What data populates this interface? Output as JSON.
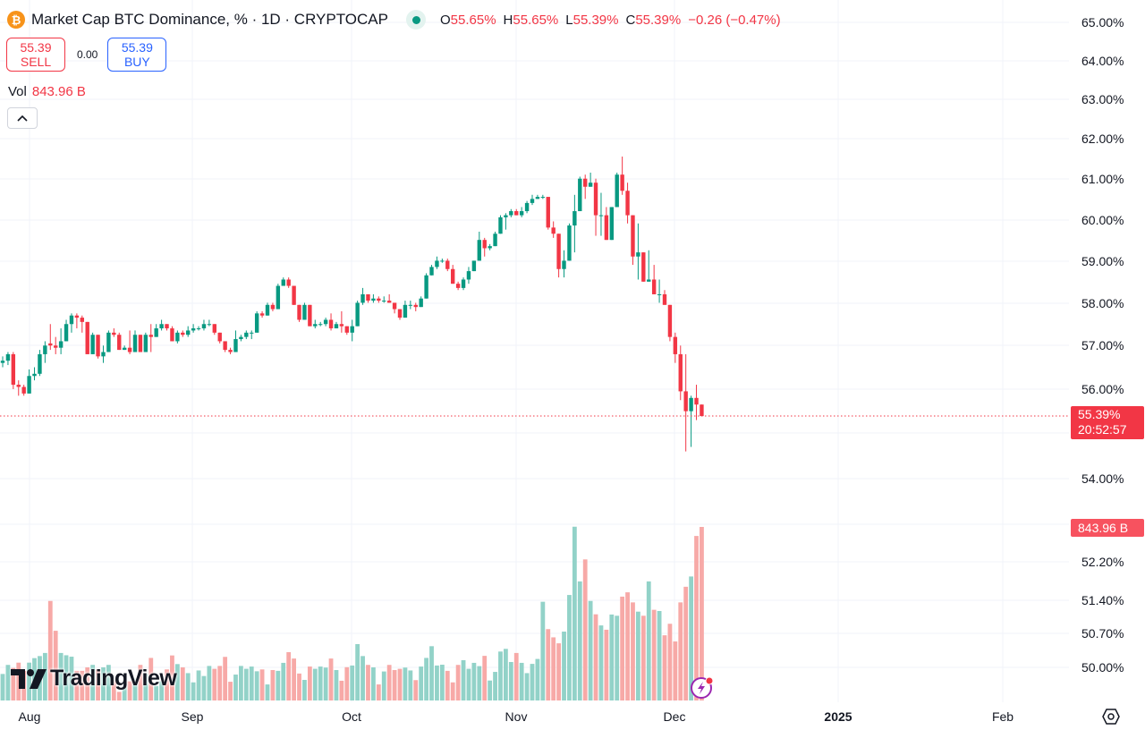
{
  "header": {
    "title": "Market Cap BTC Dominance, % · 1D · CRYPTOCAP",
    "symbol_icon": "bitcoin-icon",
    "market_status": "open",
    "ohlc": {
      "o_label": "O",
      "o": "55.65%",
      "h_label": "H",
      "h": "55.65%",
      "l_label": "L",
      "l": "55.39%",
      "c_label": "C",
      "c": "55.39%",
      "change": "−0.26 (−0.47%)"
    }
  },
  "trade": {
    "sell_price": "55.39",
    "sell_label": "SELL",
    "spread": "0.00",
    "buy_price": "55.39",
    "buy_label": "BUY"
  },
  "volume_legend": {
    "label": "Vol",
    "value": "843.96 B"
  },
  "collapse_icon": "chevron-up-icon",
  "price_axis": {
    "labels": [
      "65.00%",
      "64.00%",
      "63.00%",
      "62.00%",
      "61.00%",
      "60.00%",
      "59.00%",
      "58.00%",
      "57.00%",
      "56.00%",
      "54.00%"
    ],
    "lower_labels": [
      "52.20%",
      "51.40%",
      "50.70%",
      "50.00%"
    ],
    "last_price": "55.39%",
    "countdown": "20:52:57",
    "last_volume": "843.96 B",
    "scale": "log"
  },
  "time_axis": {
    "labels": [
      "Aug",
      "Sep",
      "Oct",
      "Nov",
      "Dec",
      "2025",
      "Feb"
    ]
  },
  "colors": {
    "up": "#089981",
    "down": "#f23645",
    "up_volume": "#92d2c8",
    "down_volume": "#f7a9a7"
  },
  "watermark": "TradingView",
  "chart_data": {
    "type": "candlestick",
    "interval": "1D",
    "start_date": "2024-07-27",
    "end_date": "2024-12-06",
    "ylim": [
      54.0,
      65.0
    ],
    "ohlc": [
      [
        56.6,
        56.75,
        56.5,
        56.65
      ],
      [
        56.65,
        56.85,
        56.55,
        56.8
      ],
      [
        56.8,
        56.85,
        56.0,
        56.1
      ],
      [
        56.1,
        56.2,
        55.85,
        56.05
      ],
      [
        56.05,
        56.1,
        55.85,
        55.9
      ],
      [
        55.9,
        56.45,
        55.9,
        56.3
      ],
      [
        56.3,
        56.5,
        56.2,
        56.35
      ],
      [
        56.35,
        56.9,
        56.3,
        56.8
      ],
      [
        56.8,
        57.1,
        56.6,
        57.0
      ],
      [
        57.05,
        57.5,
        56.9,
        57.0
      ],
      [
        57.0,
        57.2,
        56.8,
        56.95
      ],
      [
        56.95,
        57.4,
        56.8,
        57.1
      ],
      [
        57.1,
        57.6,
        57.1,
        57.5
      ],
      [
        57.5,
        57.75,
        57.3,
        57.7
      ],
      [
        57.7,
        57.75,
        57.4,
        57.65
      ],
      [
        57.65,
        57.7,
        57.3,
        57.55
      ],
      [
        57.55,
        57.55,
        56.8,
        56.8
      ],
      [
        56.8,
        57.3,
        56.8,
        57.25
      ],
      [
        57.25,
        57.25,
        56.7,
        56.75
      ],
      [
        56.75,
        57.0,
        56.6,
        56.85
      ],
      [
        56.85,
        57.35,
        56.85,
        57.3
      ],
      [
        57.3,
        57.4,
        57.2,
        57.25
      ],
      [
        57.25,
        57.3,
        56.9,
        56.9
      ],
      [
        56.9,
        57.0,
        56.9,
        56.95
      ],
      [
        56.95,
        57.35,
        56.8,
        56.85
      ],
      [
        56.85,
        57.35,
        56.85,
        57.25
      ],
      [
        57.25,
        57.25,
        56.85,
        56.85
      ],
      [
        56.85,
        57.3,
        56.85,
        57.25
      ],
      [
        57.25,
        57.5,
        56.85,
        57.2
      ],
      [
        57.2,
        57.5,
        57.2,
        57.4
      ],
      [
        57.4,
        57.6,
        57.35,
        57.5
      ],
      [
        57.5,
        57.5,
        57.35,
        57.4
      ],
      [
        57.4,
        57.45,
        57.1,
        57.1
      ],
      [
        57.1,
        57.35,
        57.05,
        57.3
      ],
      [
        57.3,
        57.35,
        57.2,
        57.25
      ],
      [
        57.25,
        57.45,
        57.2,
        57.35
      ],
      [
        57.35,
        57.5,
        57.3,
        57.4
      ],
      [
        57.4,
        57.45,
        57.35,
        57.4
      ],
      [
        57.4,
        57.6,
        57.35,
        57.5
      ],
      [
        57.5,
        57.6,
        57.45,
        57.5
      ],
      [
        57.5,
        57.5,
        57.25,
        57.3
      ],
      [
        57.3,
        57.3,
        57.05,
        57.1
      ],
      [
        57.1,
        57.1,
        56.85,
        56.9
      ],
      [
        56.9,
        56.95,
        56.8,
        56.85
      ],
      [
        56.85,
        57.35,
        56.85,
        57.15
      ],
      [
        57.15,
        57.25,
        57.1,
        57.2
      ],
      [
        57.2,
        57.35,
        57.15,
        57.3
      ],
      [
        57.3,
        57.35,
        57.15,
        57.3
      ],
      [
        57.3,
        57.8,
        57.3,
        57.75
      ],
      [
        57.75,
        57.8,
        57.65,
        57.7
      ],
      [
        57.7,
        58.0,
        57.7,
        57.95
      ],
      [
        57.95,
        58.0,
        57.8,
        57.85
      ],
      [
        57.85,
        58.45,
        57.85,
        58.4
      ],
      [
        58.4,
        58.6,
        58.4,
        58.55
      ],
      [
        58.55,
        58.6,
        58.35,
        58.4
      ],
      [
        58.4,
        58.4,
        57.95,
        57.95
      ],
      [
        57.95,
        57.95,
        57.55,
        57.6
      ],
      [
        57.6,
        58.0,
        57.6,
        57.95
      ],
      [
        57.95,
        57.95,
        57.45,
        57.45
      ],
      [
        57.45,
        57.6,
        57.4,
        57.5
      ],
      [
        57.5,
        57.55,
        57.45,
        57.5
      ],
      [
        57.5,
        57.65,
        57.45,
        57.6
      ],
      [
        57.6,
        57.75,
        57.35,
        57.4
      ],
      [
        57.4,
        57.55,
        57.4,
        57.5
      ],
      [
        57.5,
        57.8,
        57.3,
        57.45
      ],
      [
        57.45,
        57.45,
        57.25,
        57.3
      ],
      [
        57.3,
        57.6,
        57.1,
        57.45
      ],
      [
        57.45,
        58.05,
        57.45,
        58.0
      ],
      [
        58.0,
        58.35,
        57.95,
        58.2
      ],
      [
        58.2,
        58.2,
        58.0,
        58.05
      ],
      [
        58.05,
        58.2,
        58.0,
        58.1
      ],
      [
        58.1,
        58.15,
        58.0,
        58.05
      ],
      [
        58.05,
        58.15,
        58.0,
        58.05
      ],
      [
        58.05,
        58.2,
        58.0,
        58.0
      ],
      [
        58.0,
        58.0,
        57.75,
        57.85
      ],
      [
        57.85,
        57.85,
        57.6,
        57.65
      ],
      [
        57.65,
        58.05,
        57.65,
        57.95
      ],
      [
        57.95,
        58.05,
        57.85,
        57.95
      ],
      [
        57.95,
        58.0,
        57.8,
        57.9
      ],
      [
        57.9,
        58.15,
        57.9,
        58.1
      ],
      [
        58.1,
        58.7,
        58.1,
        58.65
      ],
      [
        58.65,
        58.9,
        58.65,
        58.85
      ],
      [
        58.85,
        59.1,
        58.8,
        59.0
      ],
      [
        59.0,
        59.05,
        58.95,
        59.0
      ],
      [
        59.0,
        59.05,
        58.75,
        58.8
      ],
      [
        58.8,
        58.9,
        58.45,
        58.45
      ],
      [
        58.45,
        58.5,
        58.3,
        58.35
      ],
      [
        58.35,
        58.6,
        58.3,
        58.55
      ],
      [
        58.55,
        58.85,
        58.45,
        58.75
      ],
      [
        58.75,
        59.0,
        58.75,
        59.0
      ],
      [
        59.0,
        59.7,
        59.0,
        59.5
      ],
      [
        59.5,
        59.55,
        59.1,
        59.3
      ],
      [
        59.3,
        59.4,
        59.25,
        59.35
      ],
      [
        59.35,
        59.7,
        59.35,
        59.65
      ],
      [
        59.65,
        60.1,
        59.65,
        60.05
      ],
      [
        60.05,
        60.15,
        59.75,
        60.1
      ],
      [
        60.1,
        60.25,
        60.05,
        60.2
      ],
      [
        60.2,
        60.25,
        60.1,
        60.1
      ],
      [
        60.1,
        60.3,
        60.05,
        60.2
      ],
      [
        60.2,
        60.45,
        60.15,
        60.4
      ],
      [
        60.4,
        60.6,
        60.35,
        60.5
      ],
      [
        60.5,
        60.6,
        60.5,
        60.55
      ],
      [
        60.55,
        60.6,
        60.5,
        60.55
      ],
      [
        60.55,
        60.55,
        59.75,
        59.8
      ],
      [
        59.8,
        59.95,
        59.55,
        59.65
      ],
      [
        59.65,
        59.65,
        58.6,
        58.8
      ],
      [
        58.8,
        59.25,
        58.6,
        59.0
      ],
      [
        59.0,
        59.9,
        59.0,
        59.85
      ],
      [
        59.85,
        60.6,
        59.2,
        60.2
      ],
      [
        60.2,
        61.05,
        60.2,
        61.0
      ],
      [
        61.0,
        61.1,
        60.5,
        60.8
      ],
      [
        60.8,
        61.15,
        60.8,
        60.9
      ],
      [
        60.9,
        61.0,
        59.6,
        60.1
      ],
      [
        60.1,
        60.65,
        59.6,
        60.1
      ],
      [
        60.1,
        60.3,
        59.5,
        59.5
      ],
      [
        59.5,
        60.3,
        59.5,
        60.3
      ],
      [
        60.3,
        61.15,
        60.3,
        61.1
      ],
      [
        61.1,
        61.55,
        60.6,
        60.7
      ],
      [
        60.7,
        60.9,
        59.9,
        60.1
      ],
      [
        60.1,
        60.1,
        58.9,
        59.1
      ],
      [
        59.1,
        59.9,
        58.55,
        59.2
      ],
      [
        59.2,
        59.2,
        58.5,
        58.5
      ],
      [
        58.5,
        59.25,
        58.5,
        58.55
      ],
      [
        58.55,
        58.9,
        58.2,
        58.2
      ],
      [
        58.2,
        58.55,
        58.0,
        58.2
      ],
      [
        58.2,
        58.3,
        57.95,
        57.95
      ],
      [
        57.95,
        57.95,
        57.1,
        57.2
      ],
      [
        57.2,
        57.3,
        56.6,
        56.8
      ],
      [
        56.8,
        57.0,
        55.75,
        55.95
      ],
      [
        55.95,
        56.8,
        54.6,
        55.5
      ],
      [
        55.5,
        55.85,
        54.7,
        55.8
      ],
      [
        55.8,
        56.1,
        55.3,
        55.65
      ],
      [
        55.65,
        55.65,
        55.39,
        55.39
      ]
    ],
    "volume_unit": "B",
    "volume": [
      129,
      173,
      158,
      184,
      144,
      184,
      206,
      216,
      231,
      484,
      339,
      231,
      220,
      213,
      144,
      144,
      161,
      173,
      151,
      161,
      173,
      100,
      42,
      71,
      93,
      107,
      173,
      129,
      207,
      71,
      93,
      151,
      219,
      177,
      161,
      133,
      88,
      146,
      119,
      168,
      154,
      168,
      212,
      91,
      126,
      168,
      154,
      165,
      142,
      151,
      78,
      148,
      144,
      183,
      235,
      204,
      131,
      100,
      165,
      154,
      165,
      160,
      204,
      148,
      96,
      162,
      170,
      274,
      216,
      173,
      161,
      78,
      141,
      173,
      148,
      154,
      160,
      146,
      99,
      165,
      207,
      264,
      170,
      174,
      144,
      88,
      173,
      196,
      154,
      183,
      167,
      217,
      97,
      139,
      238,
      251,
      187,
      231,
      183,
      133,
      178,
      202,
      480,
      347,
      307,
      278,
      335,
      513,
      845,
      579,
      686,
      484,
      419,
      365,
      344,
      418,
      412,
      505,
      526,
      477,
      432,
      412,
      579,
      441,
      435,
      317,
      373,
      287,
      477,
      553,
      603,
      800,
      843.96
    ]
  }
}
